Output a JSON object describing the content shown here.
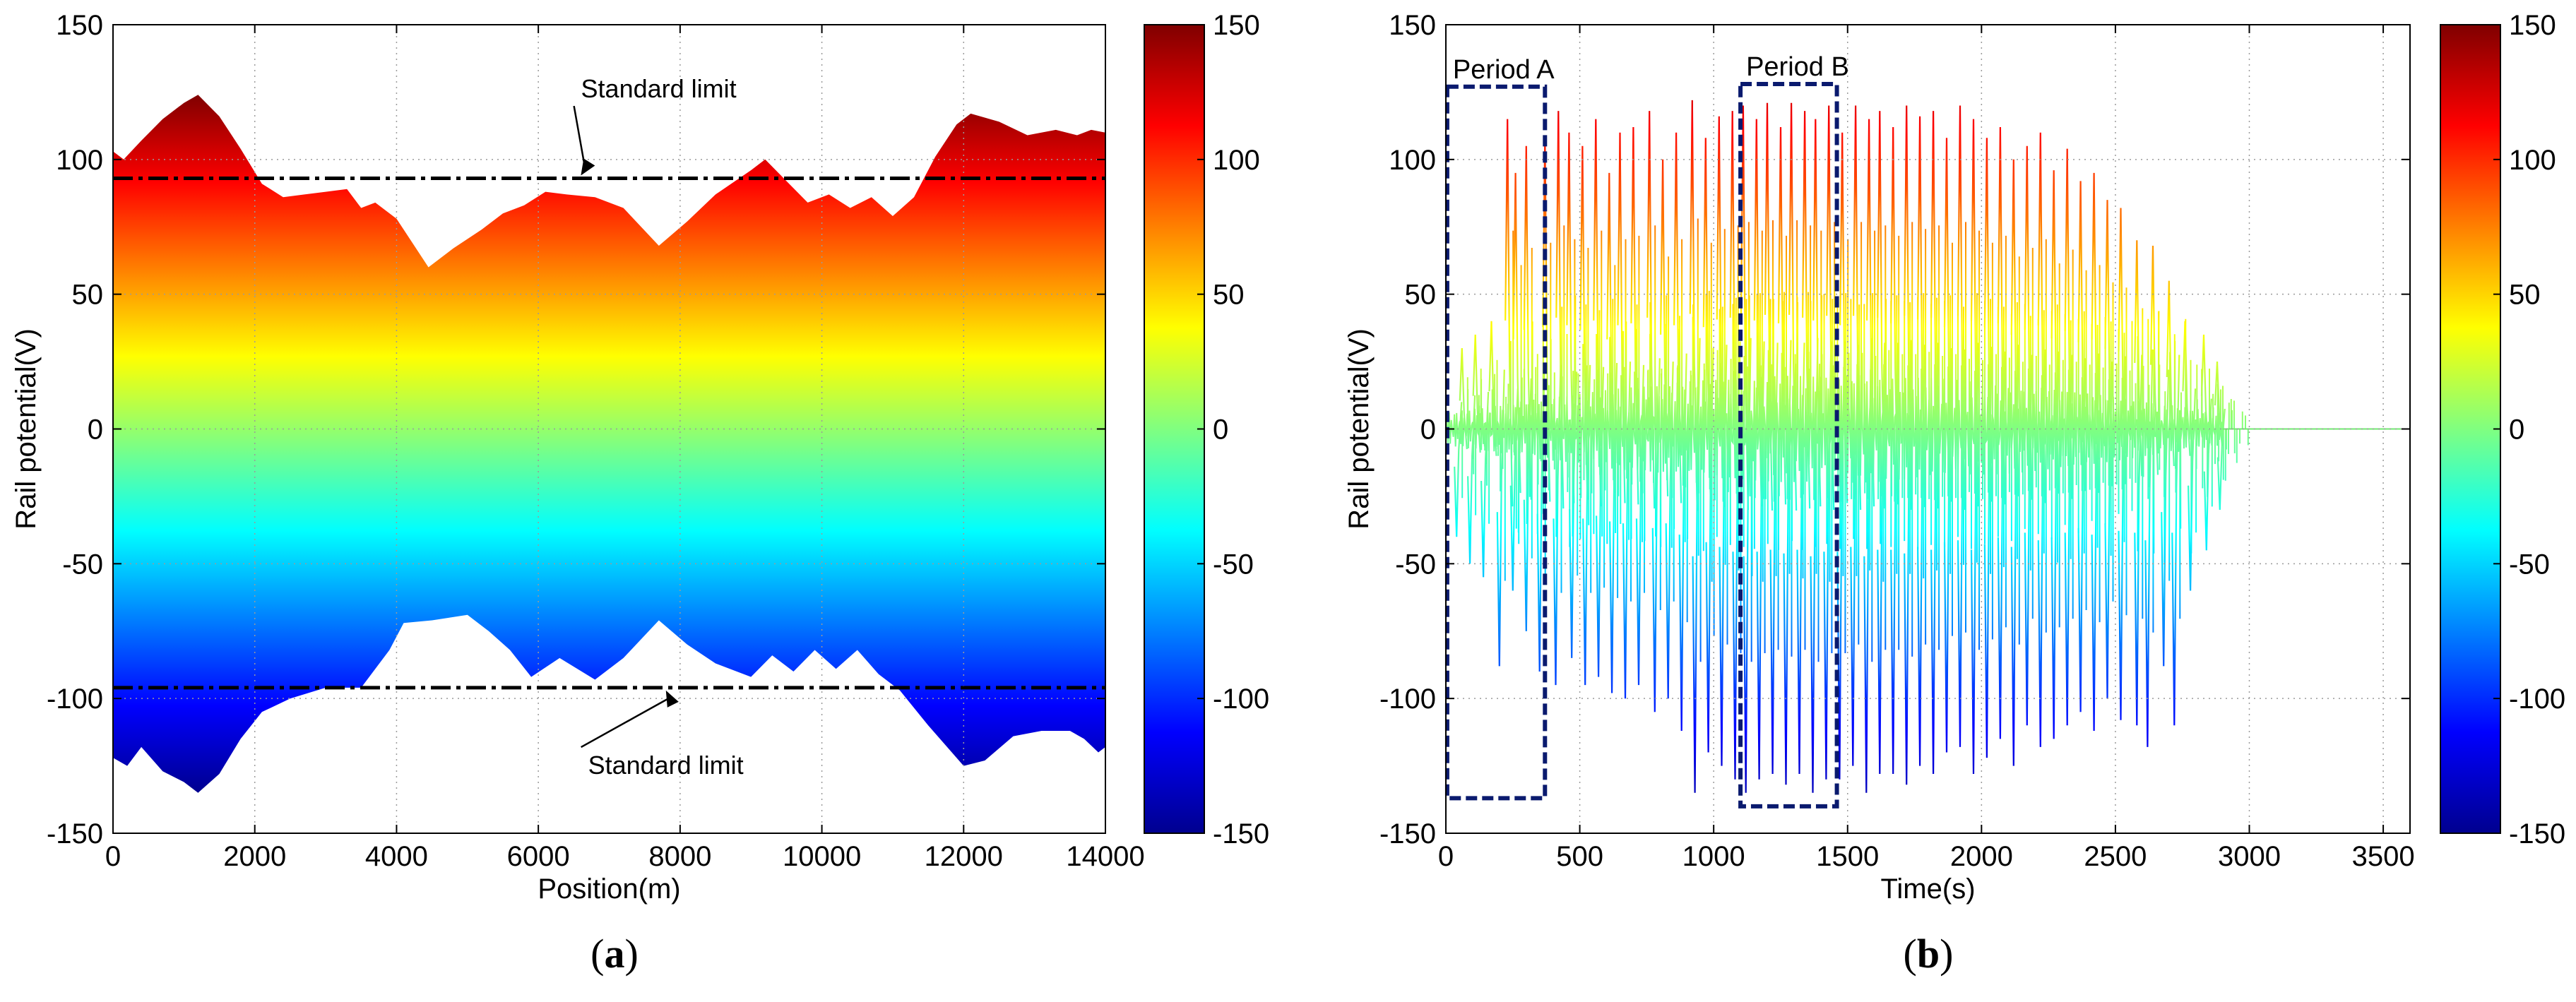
{
  "colors": {
    "colormap": [
      "#00008f",
      "#0000ff",
      "#0080ff",
      "#00ffff",
      "#80ff80",
      "#ffff00",
      "#ff8000",
      "#ff0000",
      "#800000"
    ],
    "limit_line": "#000000",
    "period_box": "#0a1a6e",
    "grid": "#9a9a9a"
  },
  "chart_data": [
    {
      "id": "a",
      "panel_label": "(a)",
      "panel_letter": "a",
      "type": "area",
      "xlabel": "Position(m)",
      "ylabel": "Rail potential(V)",
      "xlim": [
        0,
        14000
      ],
      "ylim": [
        -150,
        150
      ],
      "xticks": [
        0,
        2000,
        4000,
        6000,
        8000,
        10000,
        12000,
        14000
      ],
      "yticks": [
        -150,
        -100,
        -50,
        0,
        50,
        100,
        150
      ],
      "colorbar": {
        "clim": [
          -150,
          150
        ],
        "ticks": [
          -150,
          -100,
          -50,
          0,
          50,
          100,
          150
        ]
      },
      "upper_envelope": {
        "x": [
          0,
          150,
          400,
          700,
          1000,
          1200,
          1500,
          1800,
          2100,
          2400,
          2700,
          3000,
          3300,
          3500,
          3700,
          4000,
          4450,
          4800,
          5200,
          5500,
          5800,
          6100,
          6400,
          6800,
          7200,
          7700,
          8100,
          8500,
          9000,
          9200,
          9500,
          9800,
          10100,
          10400,
          10700,
          11000,
          11300,
          11600,
          11900,
          12100,
          12500,
          12900,
          13300,
          13600,
          13800,
          14000
        ],
        "values": [
          103,
          100,
          107,
          115,
          121,
          124,
          116,
          104,
          91,
          86,
          87,
          88,
          89,
          82,
          84,
          78,
          60,
          67,
          74,
          80,
          83,
          88,
          87,
          86,
          82,
          68,
          77,
          87,
          96,
          100,
          92,
          84,
          87,
          82,
          86,
          79,
          86,
          101,
          113,
          117,
          114,
          109,
          111,
          109,
          111,
          110
        ]
      },
      "lower_envelope": {
        "x": [
          0,
          200,
          400,
          700,
          1000,
          1200,
          1500,
          1800,
          2100,
          2500,
          3000,
          3500,
          3900,
          4100,
          4500,
          5000,
          5300,
          5600,
          5900,
          6300,
          6800,
          7200,
          7700,
          8100,
          8500,
          9000,
          9300,
          9600,
          9900,
          10200,
          10500,
          10800,
          11100,
          11500,
          12000,
          12300,
          12700,
          13100,
          13500,
          13700,
          13900,
          14000
        ],
        "values": [
          -122,
          -125,
          -118,
          -127,
          -131,
          -135,
          -128,
          -115,
          -105,
          -100,
          -96,
          -96,
          -82,
          -72,
          -71,
          -69,
          -75,
          -82,
          -92,
          -85,
          -93,
          -85,
          -71,
          -80,
          -87,
          -92,
          -84,
          -90,
          -82,
          -89,
          -82,
          -91,
          -97,
          -110,
          -125,
          -123,
          -114,
          -112,
          -112,
          -115,
          -120,
          -118
        ]
      },
      "limits": [
        {
          "value": 93,
          "label": "Standard limit",
          "label_x": 7300,
          "label_y": 123,
          "arrow_x": 6600
        },
        {
          "value": -96,
          "label": "Standard limit",
          "label_x": 7400,
          "label_y": -128,
          "arrow_x": 7800
        }
      ]
    },
    {
      "id": "b",
      "panel_label": "(b)",
      "panel_letter": "b",
      "type": "line",
      "xlabel": "Time(s)",
      "ylabel": "Rail potential(V)",
      "xlim": [
        0,
        3600
      ],
      "ylim": [
        -150,
        150
      ],
      "xticks": [
        0,
        500,
        1000,
        1500,
        2000,
        2500,
        3000,
        3500
      ],
      "yticks": [
        -150,
        -100,
        -50,
        0,
        50,
        100,
        150
      ],
      "colorbar": {
        "clim": [
          -150,
          150
        ],
        "ticks": [
          -150,
          -100,
          -50,
          0,
          50,
          100,
          150
        ]
      },
      "signal_end_s": 2900,
      "positive_spikes": [
        [
          60,
          30
        ],
        [
          110,
          35
        ],
        [
          170,
          40
        ],
        [
          230,
          115
        ],
        [
          260,
          95
        ],
        [
          300,
          105
        ],
        [
          370,
          108
        ],
        [
          420,
          118
        ],
        [
          460,
          110
        ],
        [
          510,
          105
        ],
        [
          560,
          115
        ],
        [
          610,
          95
        ],
        [
          650,
          110
        ],
        [
          700,
          112
        ],
        [
          760,
          118
        ],
        [
          810,
          100
        ],
        [
          860,
          110
        ],
        [
          920,
          122
        ],
        [
          970,
          108
        ],
        [
          1020,
          116
        ],
        [
          1070,
          118
        ],
        [
          1110,
          120
        ],
        [
          1160,
          115
        ],
        [
          1200,
          121
        ],
        [
          1250,
          112
        ],
        [
          1290,
          121
        ],
        [
          1340,
          118
        ],
        [
          1380,
          115
        ],
        [
          1430,
          120
        ],
        [
          1480,
          110
        ],
        [
          1530,
          120
        ],
        [
          1580,
          115
        ],
        [
          1620,
          118
        ],
        [
          1670,
          112
        ],
        [
          1720,
          120
        ],
        [
          1770,
          116
        ],
        [
          1820,
          118
        ],
        [
          1870,
          108
        ],
        [
          1920,
          120
        ],
        [
          1970,
          115
        ],
        [
          2020,
          108
        ],
        [
          2070,
          112
        ],
        [
          2120,
          100
        ],
        [
          2170,
          105
        ],
        [
          2220,
          110
        ],
        [
          2270,
          96
        ],
        [
          2320,
          104
        ],
        [
          2370,
          92
        ],
        [
          2420,
          95
        ],
        [
          2470,
          85
        ],
        [
          2520,
          82
        ],
        [
          2580,
          70
        ],
        [
          2640,
          68
        ],
        [
          2700,
          55
        ],
        [
          2760,
          40
        ],
        [
          2830,
          35
        ],
        [
          2880,
          25
        ]
      ],
      "negative_spikes": [
        [
          40,
          -40
        ],
        [
          90,
          -50
        ],
        [
          140,
          -55
        ],
        [
          200,
          -88
        ],
        [
          250,
          -60
        ],
        [
          300,
          -75
        ],
        [
          350,
          -90
        ],
        [
          410,
          -95
        ],
        [
          470,
          -85
        ],
        [
          520,
          -95
        ],
        [
          570,
          -92
        ],
        [
          620,
          -98
        ],
        [
          670,
          -100
        ],
        [
          720,
          -95
        ],
        [
          780,
          -105
        ],
        [
          830,
          -100
        ],
        [
          880,
          -112
        ],
        [
          930,
          -135
        ],
        [
          980,
          -120
        ],
        [
          1030,
          -125
        ],
        [
          1080,
          -130
        ],
        [
          1120,
          -135
        ],
        [
          1170,
          -130
        ],
        [
          1220,
          -128
        ],
        [
          1270,
          -132
        ],
        [
          1320,
          -128
        ],
        [
          1370,
          -135
        ],
        [
          1420,
          -130
        ],
        [
          1470,
          -130
        ],
        [
          1520,
          -125
        ],
        [
          1570,
          -135
        ],
        [
          1620,
          -128
        ],
        [
          1670,
          -128
        ],
        [
          1720,
          -132
        ],
        [
          1770,
          -125
        ],
        [
          1820,
          -128
        ],
        [
          1870,
          -120
        ],
        [
          1920,
          -118
        ],
        [
          1970,
          -128
        ],
        [
          2020,
          -122
        ],
        [
          2070,
          -115
        ],
        [
          2120,
          -125
        ],
        [
          2170,
          -110
        ],
        [
          2220,
          -118
        ],
        [
          2270,
          -115
        ],
        [
          2320,
          -110
        ],
        [
          2370,
          -105
        ],
        [
          2420,
          -112
        ],
        [
          2470,
          -100
        ],
        [
          2520,
          -108
        ],
        [
          2580,
          -110
        ],
        [
          2620,
          -118
        ],
        [
          2680,
          -88
        ],
        [
          2720,
          -110
        ],
        [
          2780,
          -60
        ],
        [
          2840,
          -45
        ],
        [
          2890,
          -30
        ]
      ],
      "periods": [
        {
          "label": "Period A",
          "x0": 5,
          "x1": 370,
          "y0": -137,
          "y1": 127
        },
        {
          "label": "Period B",
          "x0": 1100,
          "x1": 1460,
          "y0": -140,
          "y1": 128
        }
      ]
    }
  ]
}
